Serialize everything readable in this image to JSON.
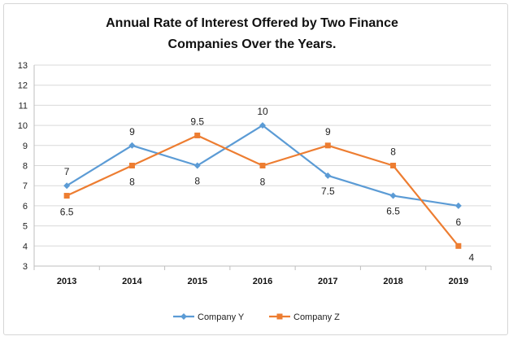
{
  "chart_data": {
    "type": "line",
    "title_lines": [
      "Annual Rate of Interest Offered by Two Finance",
      "Companies Over the Years."
    ],
    "categories": [
      "2013",
      "2014",
      "2015",
      "2016",
      "2017",
      "2018",
      "2019"
    ],
    "series": [
      {
        "name": "Company Y",
        "color": "#5B9BD5",
        "marker": "diamond",
        "values": [
          7,
          9,
          8,
          10,
          7.5,
          6.5,
          6
        ],
        "labels": [
          "7",
          "9",
          "8",
          "10",
          "7.5",
          "6.5",
          "6"
        ]
      },
      {
        "name": "Company Z",
        "color": "#ED7D31",
        "marker": "square",
        "values": [
          6.5,
          8,
          9.5,
          8,
          9,
          8,
          4
        ],
        "labels": [
          "6.5",
          "8",
          "9.5",
          "8",
          "9",
          "8",
          "4"
        ]
      }
    ],
    "ylim": [
      3,
      13
    ],
    "y_ticks": [
      "3",
      "4",
      "5",
      "6",
      "7",
      "8",
      "9",
      "10",
      "11",
      "12",
      "13"
    ],
    "xlabel": "",
    "ylabel": "",
    "grid": true,
    "legend_position": "bottom"
  }
}
